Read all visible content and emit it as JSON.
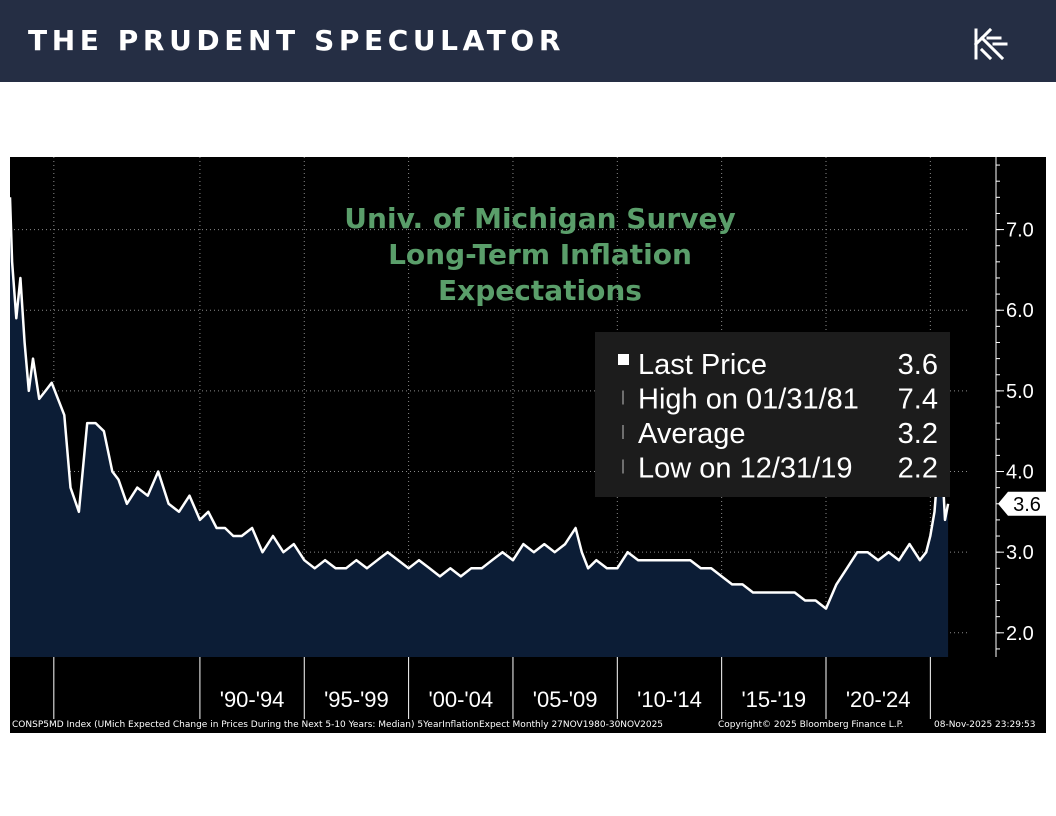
{
  "header": {
    "brand": "THE PRUDENT SPECULATOR",
    "logo_icon": "kt-monogram-icon",
    "background": "#252e44"
  },
  "footer": {
    "left": "CONSP5MD Index (UMich Expected Change in Prices During the Next 5-10 Years: Median) 5YearInflationExpect Monthly 27NOV1980-30NOV2025",
    "center": "Copyright© 2025 Bloomberg Finance L.P.",
    "right": "08-Nov-2025 23:29:53"
  },
  "chart_data": {
    "type": "area",
    "title": [
      "Univ. of Michigan Survey",
      "Long-Term Inflation",
      "Expectations"
    ],
    "title_color": "#5a9e6a",
    "fill_color": "#0c1d36",
    "line_color": "#ffffff",
    "xlim": [
      1980.9,
      2026.9
    ],
    "ylim": [
      1.7,
      7.9
    ],
    "y_ticks": [
      2.0,
      3.0,
      4.0,
      5.0,
      6.0,
      7.0
    ],
    "y_tick_labels": [
      "2.0",
      "3.0",
      "4.0",
      "5.0",
      "6.0",
      "7.0"
    ],
    "x_period_boundaries": [
      1983,
      1990,
      1995,
      2000,
      2005,
      2010,
      2015,
      2020,
      2025
    ],
    "x_labels": [
      {
        "label": "'90-'94",
        "center": 1992.5
      },
      {
        "label": "'95-'99",
        "center": 1997.5
      },
      {
        "label": "'00-'04",
        "center": 2002.5
      },
      {
        "label": "'05-'09",
        "center": 2007.5
      },
      {
        "label": "'10-'14",
        "center": 2012.5
      },
      {
        "label": "'15-'19",
        "center": 2017.5
      },
      {
        "label": "'20-'24",
        "center": 2022.5
      }
    ],
    "grid": true,
    "legend_position": "top-right",
    "legend": [
      {
        "label": "Last Price",
        "value": "3.6"
      },
      {
        "label": "High on 01/31/81",
        "value": "7.4"
      },
      {
        "label": "Average",
        "value": "3.2"
      },
      {
        "label": "Low on 12/31/19",
        "value": "2.2"
      }
    ],
    "last_value_label": "3.6",
    "series": [
      {
        "x": [
          1980.9,
          1981.0,
          1981.2,
          1981.4,
          1981.6,
          1981.8,
          1982.0,
          1982.3,
          1982.6,
          1982.9,
          1983.2,
          1983.5,
          1983.8,
          1984.2,
          1984.6,
          1985.0,
          1985.4,
          1985.8,
          1986.1,
          1986.5,
          1987.0,
          1987.5,
          1988.0,
          1988.5,
          1989.0,
          1989.5,
          1990.0,
          1990.4,
          1990.8,
          1991.2,
          1991.6,
          1992.0,
          1992.5,
          1993.0,
          1993.5,
          1994.0,
          1994.5,
          1995.0,
          1995.5,
          1996.0,
          1996.5,
          1997.0,
          1997.5,
          1998.0,
          1998.5,
          1999.0,
          1999.5,
          2000.0,
          2000.5,
          2001.0,
          2001.5,
          2002.0,
          2002.5,
          2003.0,
          2003.5,
          2004.0,
          2004.5,
          2005.0,
          2005.5,
          2006.0,
          2006.5,
          2007.0,
          2007.5,
          2008.0,
          2008.3,
          2008.6,
          2009.0,
          2009.5,
          2010.0,
          2010.5,
          2011.0,
          2011.5,
          2012.0,
          2012.5,
          2013.0,
          2013.5,
          2014.0,
          2014.5,
          2015.0,
          2015.5,
          2016.0,
          2016.5,
          2017.0,
          2017.5,
          2018.0,
          2018.5,
          2019.0,
          2019.5,
          2020.0,
          2020.5,
          2021.0,
          2021.5,
          2022.0,
          2022.5,
          2023.0,
          2023.5,
          2024.0,
          2024.5,
          2024.8,
          2025.0,
          2025.2,
          2025.35,
          2025.5,
          2025.7,
          2025.85
        ],
        "y": [
          7.4,
          6.6,
          5.9,
          6.4,
          5.6,
          5.0,
          5.4,
          4.9,
          5.0,
          5.1,
          4.9,
          4.7,
          3.8,
          3.5,
          4.6,
          4.6,
          4.5,
          4.0,
          3.9,
          3.6,
          3.8,
          3.7,
          4.0,
          3.6,
          3.5,
          3.7,
          3.4,
          3.5,
          3.3,
          3.3,
          3.2,
          3.2,
          3.3,
          3.0,
          3.2,
          3.0,
          3.1,
          2.9,
          2.8,
          2.9,
          2.8,
          2.8,
          2.9,
          2.8,
          2.9,
          3.0,
          2.9,
          2.8,
          2.9,
          2.8,
          2.7,
          2.8,
          2.7,
          2.8,
          2.8,
          2.9,
          3.0,
          2.9,
          3.1,
          3.0,
          3.1,
          3.0,
          3.1,
          3.3,
          3.0,
          2.8,
          2.9,
          2.8,
          2.8,
          3.0,
          2.9,
          2.9,
          2.9,
          2.9,
          2.9,
          2.9,
          2.8,
          2.8,
          2.7,
          2.6,
          2.6,
          2.5,
          2.5,
          2.5,
          2.5,
          2.5,
          2.4,
          2.4,
          2.3,
          2.6,
          2.8,
          3.0,
          3.0,
          2.9,
          3.0,
          2.9,
          3.1,
          2.9,
          3.0,
          3.2,
          3.5,
          4.0,
          4.4,
          3.4,
          3.6
        ]
      }
    ]
  }
}
